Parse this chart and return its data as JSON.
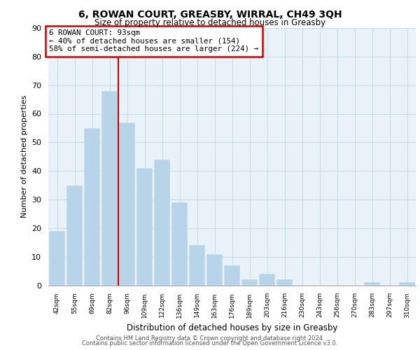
{
  "title": "6, ROWAN COURT, GREASBY, WIRRAL, CH49 3QH",
  "subtitle": "Size of property relative to detached houses in Greasby",
  "xlabel": "Distribution of detached houses by size in Greasby",
  "ylabel": "Number of detached properties",
  "bar_labels": [
    "42sqm",
    "55sqm",
    "69sqm",
    "82sqm",
    "96sqm",
    "109sqm",
    "122sqm",
    "136sqm",
    "149sqm",
    "163sqm",
    "176sqm",
    "189sqm",
    "203sqm",
    "216sqm",
    "230sqm",
    "243sqm",
    "256sqm",
    "270sqm",
    "283sqm",
    "297sqm",
    "310sqm"
  ],
  "bar_values": [
    19,
    35,
    55,
    68,
    57,
    41,
    44,
    29,
    14,
    11,
    7,
    2,
    4,
    2,
    0,
    0,
    0,
    0,
    1,
    0,
    1
  ],
  "bar_color": "#b8d4e8",
  "bar_edge_color": "#b8d4e8",
  "highlight_line_color": "#cc0000",
  "annotation_text": "6 ROWAN COURT: 93sqm\n← 40% of detached houses are smaller (154)\n58% of semi-detached houses are larger (224) →",
  "annotation_box_color": "#ffffff",
  "annotation_box_edge": "#cc0000",
  "ylim": [
    0,
    90
  ],
  "yticks": [
    0,
    10,
    20,
    30,
    40,
    50,
    60,
    70,
    80,
    90
  ],
  "grid_color": "#c8dcea",
  "background_color": "#e8f2f8",
  "footer_line1": "Contains HM Land Registry data © Crown copyright and database right 2024.",
  "footer_line2": "Contains public sector information licensed under the Open Government Licence v3.0."
}
